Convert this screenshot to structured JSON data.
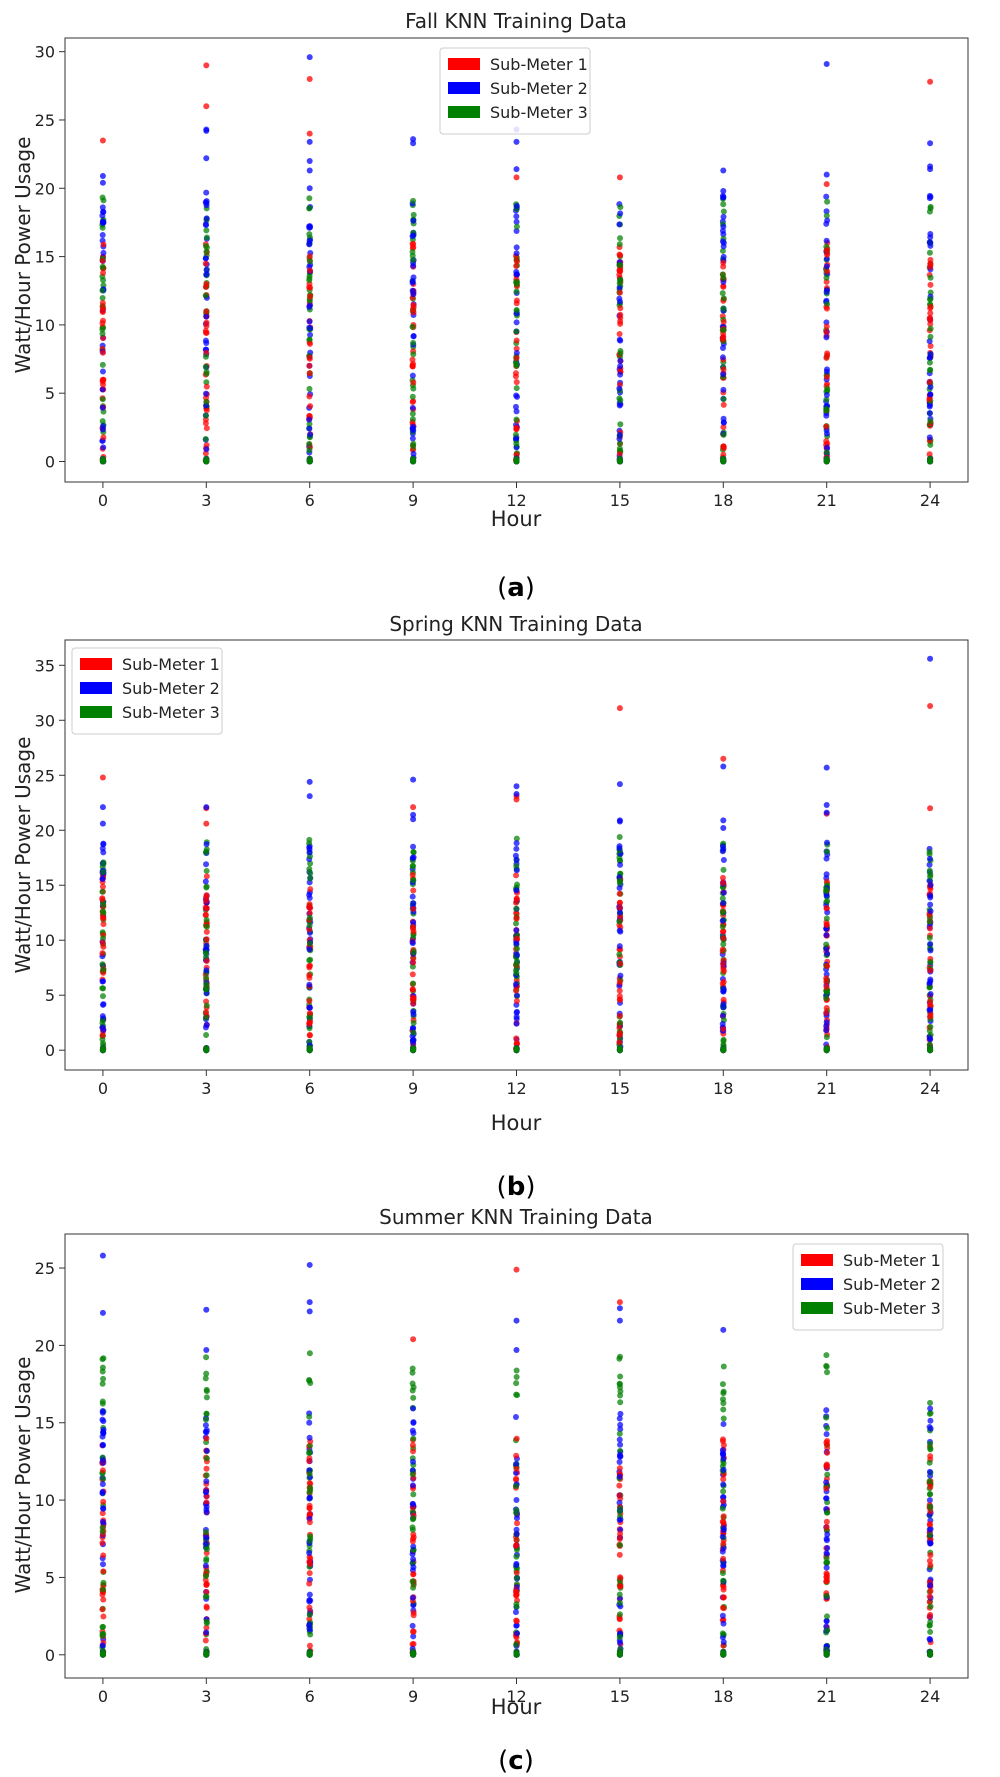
{
  "panels": [
    {
      "id": "a",
      "caption": "a",
      "chart_data": {
        "type": "scatter",
        "title": "Fall KNN Training Data",
        "xlabel": "Hour",
        "ylabel": "Watt/Hour Power Usage",
        "xlim": [
          -1.1,
          25.1
        ],
        "ylim": [
          -1.5,
          31
        ],
        "xticks": [
          0,
          3,
          6,
          9,
          12,
          15,
          18,
          21,
          24
        ],
        "yticks": [
          0,
          5,
          10,
          15,
          20,
          25,
          30
        ],
        "legend_position": "top-center",
        "grid": false,
        "series": [
          {
            "name": "Sub-Meter 1",
            "color": "#ff0000",
            "stripe_range": [
              0,
              16
            ],
            "outliers": [
              [
                0,
                23.5
              ],
              [
                3,
                26
              ],
              [
                3,
                29
              ],
              [
                6,
                28
              ],
              [
                6,
                24
              ],
              [
                12,
                20.8
              ],
              [
                15,
                20.8
              ],
              [
                21,
                20.3
              ],
              [
                24,
                27.8
              ]
            ]
          },
          {
            "name": "Sub-Meter 2",
            "color": "#0000ff",
            "stripe_range": [
              0,
              19.8
            ],
            "outliers": [
              [
                0,
                20.9
              ],
              [
                0,
                20.4
              ],
              [
                3,
                22.2
              ],
              [
                3,
                24.3
              ],
              [
                3,
                24.2
              ],
              [
                6,
                29.6
              ],
              [
                6,
                23.4
              ],
              [
                6,
                22.0
              ],
              [
                6,
                21.3
              ],
              [
                6,
                20.0
              ],
              [
                9,
                23.6
              ],
              [
                9,
                23.3
              ],
              [
                12,
                24.3
              ],
              [
                12,
                23.4
              ],
              [
                12,
                21.4
              ],
              [
                18,
                21.3
              ],
              [
                18,
                19.8
              ],
              [
                21,
                29.1
              ],
              [
                21,
                21.0
              ],
              [
                24,
                23.3
              ],
              [
                24,
                21.6
              ],
              [
                24,
                21.4
              ]
            ]
          },
          {
            "name": "Sub-Meter 3",
            "color": "#008000",
            "stripe_range": [
              0,
              19.4
            ],
            "outliers": []
          }
        ]
      }
    },
    {
      "id": "b",
      "caption": "b",
      "chart_data": {
        "type": "scatter",
        "title": "Spring KNN Training Data",
        "xlabel": "Hour",
        "ylabel": "Watt/Hour Power Usage",
        "xlim": [
          -1.1,
          25.1
        ],
        "ylim": [
          -1.8,
          37.3
        ],
        "xticks": [
          0,
          3,
          6,
          9,
          12,
          15,
          18,
          21,
          24
        ],
        "yticks": [
          0,
          5,
          10,
          15,
          20,
          25,
          30,
          35
        ],
        "legend_position": "top-left",
        "grid": false,
        "series": [
          {
            "name": "Sub-Meter 1",
            "color": "#ff0000",
            "stripe_range": [
              0,
              16
            ],
            "outliers": [
              [
                0,
                24.8
              ],
              [
                3,
                22.0
              ],
              [
                3,
                20.6
              ],
              [
                9,
                22.1
              ],
              [
                12,
                23.1
              ],
              [
                12,
                22.8
              ],
              [
                15,
                31.1
              ],
              [
                18,
                26.5
              ],
              [
                21,
                21.5
              ],
              [
                24,
                31.3
              ],
              [
                24,
                22.0
              ]
            ]
          },
          {
            "name": "Sub-Meter 2",
            "color": "#0000ff",
            "stripe_range": [
              0,
              19
            ],
            "outliers": [
              [
                0,
                22.1
              ],
              [
                0,
                20.6
              ],
              [
                3,
                22.1
              ],
              [
                6,
                24.4
              ],
              [
                6,
                23.1
              ],
              [
                9,
                24.6
              ],
              [
                9,
                21.4
              ],
              [
                9,
                21.0
              ],
              [
                12,
                24.0
              ],
              [
                12,
                23.3
              ],
              [
                15,
                24.2
              ],
              [
                15,
                20.9
              ],
              [
                15,
                20.8
              ],
              [
                18,
                25.8
              ],
              [
                18,
                20.9
              ],
              [
                18,
                20.2
              ],
              [
                21,
                25.7
              ],
              [
                21,
                22.3
              ],
              [
                21,
                21.6
              ],
              [
                24,
                35.6
              ]
            ]
          },
          {
            "name": "Sub-Meter 3",
            "color": "#008000",
            "stripe_range": [
              0,
              19.4
            ],
            "outliers": []
          }
        ]
      }
    },
    {
      "id": "c",
      "caption": "c",
      "chart_data": {
        "type": "scatter",
        "title": "Summer KNN Training Data",
        "xlabel": "Hour",
        "ylabel": "Watt/Hour Power Usage",
        "xlim": [
          -1.1,
          25.1
        ],
        "ylim": [
          -1.5,
          27.2
        ],
        "xticks": [
          0,
          3,
          6,
          9,
          12,
          15,
          18,
          21,
          24
        ],
        "yticks": [
          0,
          5,
          10,
          15,
          20,
          25
        ],
        "legend_position": "top-right",
        "grid": false,
        "series": [
          {
            "name": "Sub-Meter 1",
            "color": "#ff0000",
            "stripe_range": [
              0,
              14
            ],
            "outliers": [
              [
                9,
                20.4
              ],
              [
                12,
                24.9
              ],
              [
                15,
                22.8
              ]
            ]
          },
          {
            "name": "Sub-Meter 2",
            "color": "#0000ff",
            "stripe_range": [
              0,
              16
            ],
            "outliers": [
              [
                0,
                25.8
              ],
              [
                0,
                22.1
              ],
              [
                3,
                22.3
              ],
              [
                3,
                19.7
              ],
              [
                6,
                25.2
              ],
              [
                6,
                22.8
              ],
              [
                6,
                22.2
              ],
              [
                12,
                21.6
              ],
              [
                12,
                19.7
              ],
              [
                15,
                22.4
              ],
              [
                15,
                21.6
              ],
              [
                18,
                21.0
              ]
            ]
          },
          {
            "name": "Sub-Meter 3",
            "color": "#008000",
            "stripe_range": [
              0,
              19.5
            ],
            "outliers": []
          }
        ]
      }
    }
  ]
}
